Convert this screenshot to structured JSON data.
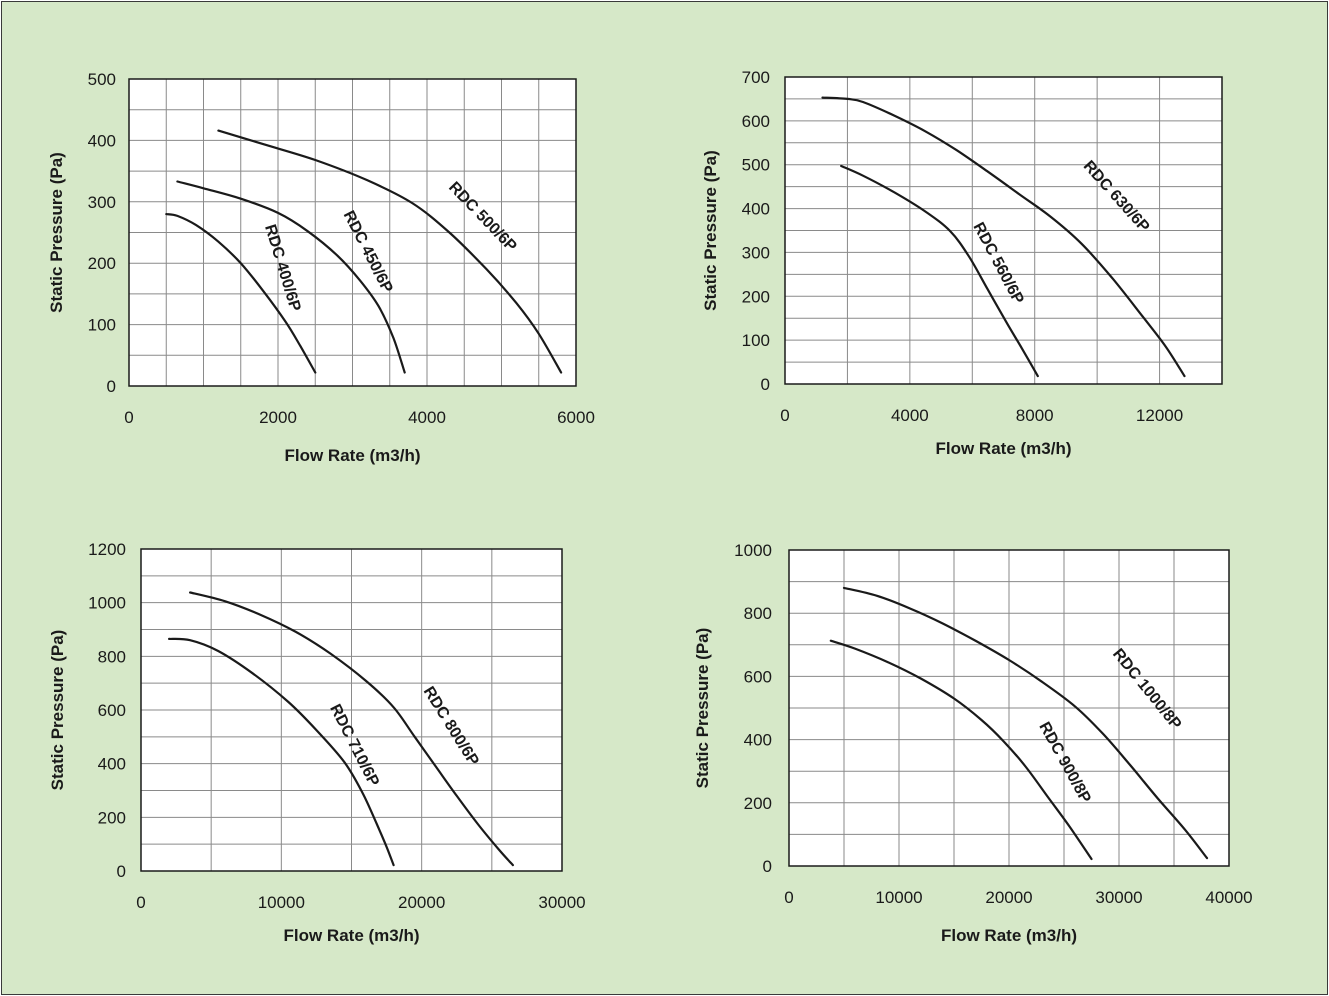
{
  "colors": {
    "background": "#d6e8c8",
    "plot_background": "#ffffff",
    "grid": "#8a8a8a",
    "curve": "#1a1a1a"
  },
  "chart_data": [
    {
      "type": "line",
      "xlabel": "Flow Rate (m3/h)",
      "ylabel": "Static Pressure (Pa)",
      "xlim": [
        0,
        6000
      ],
      "ylim": [
        0,
        500
      ],
      "xticks": [
        0,
        2000,
        4000,
        6000
      ],
      "yticks": [
        0,
        100,
        200,
        300,
        400,
        500
      ],
      "grid": true,
      "series": [
        {
          "name": "RDC 400/6P",
          "points": [
            [
              500,
              280
            ],
            [
              650,
              277
            ],
            [
              900,
              262
            ],
            [
              1200,
              235
            ],
            [
              1500,
              200
            ],
            [
              1800,
              155
            ],
            [
              2100,
              105
            ],
            [
              2300,
              65
            ],
            [
              2500,
              22
            ]
          ]
        },
        {
          "name": "RDC 450/6P",
          "points": [
            [
              650,
              333
            ],
            [
              1000,
              322
            ],
            [
              1500,
              305
            ],
            [
              2000,
              282
            ],
            [
              2400,
              252
            ],
            [
              2800,
              212
            ],
            [
              3100,
              172
            ],
            [
              3350,
              130
            ],
            [
              3550,
              78
            ],
            [
              3700,
              22
            ]
          ]
        },
        {
          "name": "RDC 500/6P",
          "points": [
            [
              1200,
              416
            ],
            [
              1800,
              394
            ],
            [
              2500,
              368
            ],
            [
              3200,
              335
            ],
            [
              3800,
              298
            ],
            [
              4300,
              250
            ],
            [
              4800,
              190
            ],
            [
              5200,
              135
            ],
            [
              5500,
              85
            ],
            [
              5800,
              22
            ]
          ]
        }
      ]
    },
    {
      "type": "line",
      "xlabel": "Flow Rate (m3/h)",
      "ylabel": "Static Pressure (Pa)",
      "xlim": [
        0,
        14000
      ],
      "ylim": [
        0,
        700
      ],
      "xticks": [
        0,
        4000,
        8000,
        12000
      ],
      "yticks": [
        0,
        100,
        200,
        300,
        400,
        500,
        600,
        700
      ],
      "grid": true,
      "series": [
        {
          "name": "RDC 560/6P",
          "points": [
            [
              1800,
              497
            ],
            [
              2500,
              475
            ],
            [
              3500,
              437
            ],
            [
              4500,
              393
            ],
            [
              5300,
              348
            ],
            [
              5900,
              290
            ],
            [
              6500,
              215
            ],
            [
              7100,
              140
            ],
            [
              7600,
              80
            ],
            [
              8100,
              18
            ]
          ]
        },
        {
          "name": "RDC 630/6P",
          "points": [
            [
              1200,
              653
            ],
            [
              2000,
              650
            ],
            [
              2500,
              643
            ],
            [
              3500,
              612
            ],
            [
              4500,
              576
            ],
            [
              5500,
              533
            ],
            [
              6500,
              484
            ],
            [
              7500,
              433
            ],
            [
              8500,
              382
            ],
            [
              9500,
              320
            ],
            [
              10500,
              240
            ],
            [
              11500,
              150
            ],
            [
              12200,
              85
            ],
            [
              12800,
              18
            ]
          ]
        }
      ]
    },
    {
      "type": "line",
      "xlabel": "Flow Rate (m3/h)",
      "ylabel": "Static Pressure (Pa)",
      "xlim": [
        0,
        30000
      ],
      "ylim": [
        0,
        1200
      ],
      "xticks": [
        0,
        10000,
        20000,
        30000
      ],
      "yticks": [
        0,
        200,
        400,
        600,
        800,
        1000,
        1200
      ],
      "grid": true,
      "series": [
        {
          "name": "RDC 710/6P",
          "points": [
            [
              2000,
              865
            ],
            [
              3500,
              860
            ],
            [
              5500,
              820
            ],
            [
              8000,
              735
            ],
            [
              10500,
              630
            ],
            [
              12500,
              525
            ],
            [
              14500,
              405
            ],
            [
              15800,
              290
            ],
            [
              16800,
              175
            ],
            [
              17500,
              90
            ],
            [
              18000,
              22
            ]
          ]
        },
        {
          "name": "RDC 800/6P",
          "points": [
            [
              3500,
              1038
            ],
            [
              6000,
              1005
            ],
            [
              8500,
              955
            ],
            [
              11000,
              892
            ],
            [
              13500,
              810
            ],
            [
              16000,
              710
            ],
            [
              18000,
              610
            ],
            [
              19500,
              500
            ],
            [
              21000,
              390
            ],
            [
              22500,
              280
            ],
            [
              24000,
              175
            ],
            [
              25500,
              80
            ],
            [
              26500,
              22
            ]
          ]
        }
      ]
    },
    {
      "type": "line",
      "xlabel": "Flow Rate (m3/h)",
      "ylabel": "Static Pressure (Pa)",
      "xlim": [
        0,
        40000
      ],
      "ylim": [
        0,
        1000
      ],
      "xticks": [
        0,
        10000,
        20000,
        30000,
        40000
      ],
      "yticks": [
        0,
        200,
        400,
        600,
        800,
        1000
      ],
      "grid": true,
      "series": [
        {
          "name": "RDC 900/8P",
          "points": [
            [
              3800,
              713
            ],
            [
              6000,
              688
            ],
            [
              9000,
              645
            ],
            [
              12000,
              593
            ],
            [
              15000,
              530
            ],
            [
              17500,
              462
            ],
            [
              19500,
              395
            ],
            [
              21500,
              315
            ],
            [
              23500,
              220
            ],
            [
              25500,
              125
            ],
            [
              27500,
              22
            ]
          ]
        },
        {
          "name": "RDC 1000/8P",
          "points": [
            [
              5000,
              880
            ],
            [
              8000,
              855
            ],
            [
              11000,
              815
            ],
            [
              14000,
              767
            ],
            [
              17000,
              712
            ],
            [
              20000,
              652
            ],
            [
              23000,
              583
            ],
            [
              26000,
              505
            ],
            [
              28500,
              420
            ],
            [
              31000,
              320
            ],
            [
              33500,
              215
            ],
            [
              36000,
              115
            ],
            [
              38000,
              25
            ]
          ]
        }
      ]
    }
  ]
}
